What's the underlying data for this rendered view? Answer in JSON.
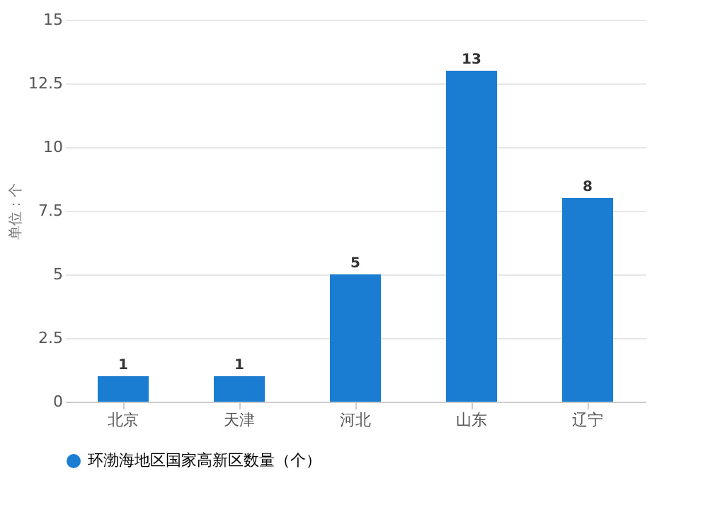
{
  "chart_data": {
    "type": "bar",
    "ylabel": "单位：个",
    "categories": [
      "北京",
      "天津",
      "河北",
      "山东",
      "辽宁"
    ],
    "series": [
      {
        "name": "环渤海地区国家高新区数量（个）",
        "color": "#1a7dd2",
        "values": [
          1,
          1,
          5,
          13,
          8
        ]
      }
    ],
    "ylim": [
      0,
      15
    ],
    "yticks": [
      0,
      2.5,
      5,
      7.5,
      10,
      12.5,
      15
    ],
    "grid": "y",
    "legend": "bottom",
    "data_labels": true
  }
}
